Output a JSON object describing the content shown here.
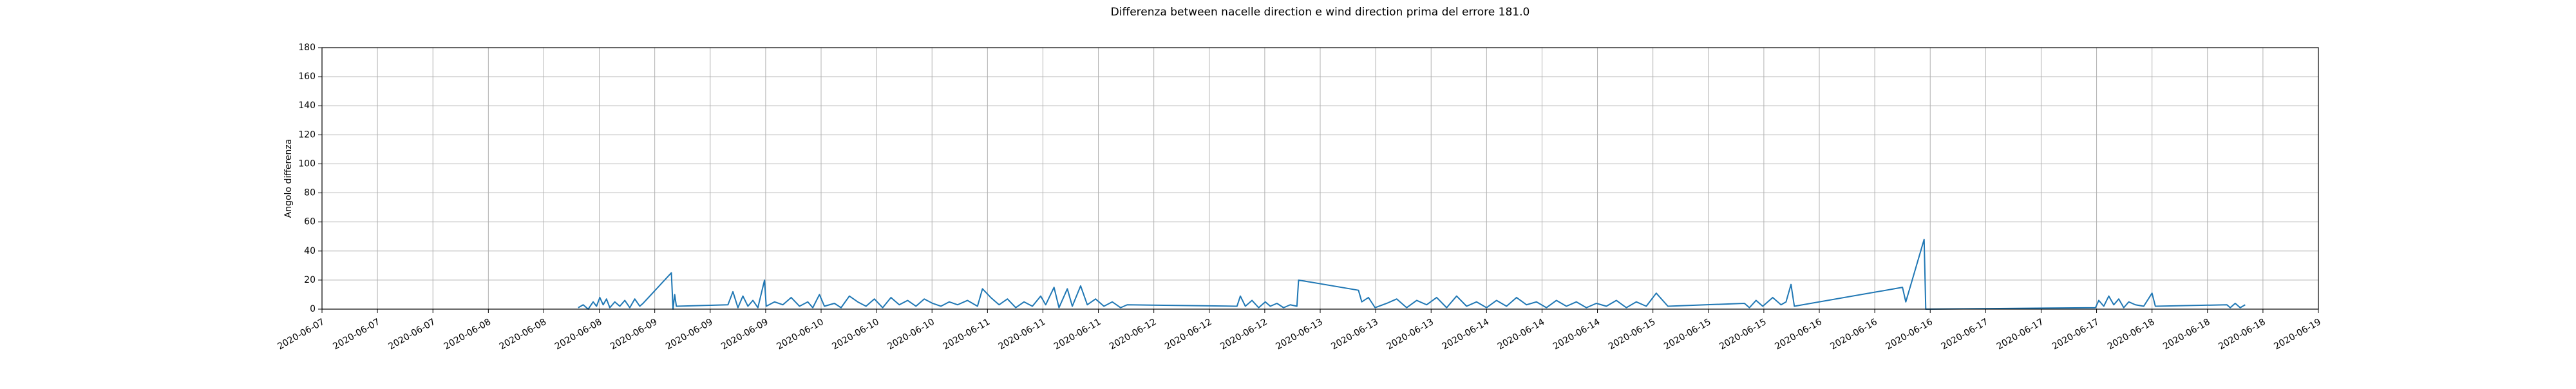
{
  "chart_data": {
    "type": "line",
    "title": "Differenza between nacelle direction e wind direction prima del errore 181.0",
    "ylabel": "Angolo differenza",
    "grid": true,
    "xlim": [
      18420,
      18432
    ],
    "xticks": [
      {
        "value": 18420,
        "label": "2020-06-07"
      },
      {
        "value": 18420.3333,
        "label": "2020-06-07"
      },
      {
        "value": 18420.6667,
        "label": "2020-06-07"
      },
      {
        "value": 18421,
        "label": "2020-06-08"
      },
      {
        "value": 18421.3333,
        "label": "2020-06-08"
      },
      {
        "value": 18421.6667,
        "label": "2020-06-08"
      },
      {
        "value": 18422,
        "label": "2020-06-09"
      },
      {
        "value": 18422.3333,
        "label": "2020-06-09"
      },
      {
        "value": 18422.6667,
        "label": "2020-06-09"
      },
      {
        "value": 18423,
        "label": "2020-06-10"
      },
      {
        "value": 18423.3333,
        "label": "2020-06-10"
      },
      {
        "value": 18423.6667,
        "label": "2020-06-10"
      },
      {
        "value": 18424,
        "label": "2020-06-11"
      },
      {
        "value": 18424.3333,
        "label": "2020-06-11"
      },
      {
        "value": 18424.6667,
        "label": "2020-06-11"
      },
      {
        "value": 18425,
        "label": "2020-06-12"
      },
      {
        "value": 18425.3333,
        "label": "2020-06-12"
      },
      {
        "value": 18425.6667,
        "label": "2020-06-12"
      },
      {
        "value": 18426,
        "label": "2020-06-13"
      },
      {
        "value": 18426.3333,
        "label": "2020-06-13"
      },
      {
        "value": 18426.6667,
        "label": "2020-06-13"
      },
      {
        "value": 18427,
        "label": "2020-06-14"
      },
      {
        "value": 18427.3333,
        "label": "2020-06-14"
      },
      {
        "value": 18427.6667,
        "label": "2020-06-14"
      },
      {
        "value": 18428,
        "label": "2020-06-15"
      },
      {
        "value": 18428.3333,
        "label": "2020-06-15"
      },
      {
        "value": 18428.6667,
        "label": "2020-06-15"
      },
      {
        "value": 18429,
        "label": "2020-06-16"
      },
      {
        "value": 18429.3333,
        "label": "2020-06-16"
      },
      {
        "value": 18429.6667,
        "label": "2020-06-16"
      },
      {
        "value": 18430,
        "label": "2020-06-17"
      },
      {
        "value": 18430.3333,
        "label": "2020-06-17"
      },
      {
        "value": 18430.6667,
        "label": "2020-06-17"
      },
      {
        "value": 18431,
        "label": "2020-06-18"
      },
      {
        "value": 18431.3333,
        "label": "2020-06-18"
      },
      {
        "value": 18431.6667,
        "label": "2020-06-18"
      },
      {
        "value": 18432,
        "label": "2020-06-19"
      }
    ],
    "ylim": [
      0,
      180
    ],
    "yticks": [
      0,
      20,
      40,
      60,
      80,
      100,
      120,
      140,
      160,
      180
    ],
    "x": [
      18421.54,
      18421.57,
      18421.6,
      18421.63,
      18421.65,
      18421.67,
      18421.69,
      18421.71,
      18421.73,
      18421.76,
      18421.79,
      18421.82,
      18421.85,
      18421.88,
      18421.91,
      18421.93,
      18422.1,
      18422.11,
      18422.12,
      18422.13,
      18422.44,
      18422.47,
      18422.5,
      18422.53,
      18422.56,
      18422.59,
      18422.62,
      18422.66,
      18422.67,
      18422.72,
      18422.77,
      18422.82,
      18422.87,
      18422.92,
      18422.95,
      18422.99,
      18423.02,
      18423.08,
      18423.12,
      18423.17,
      18423.22,
      18423.27,
      18423.32,
      18423.37,
      18423.42,
      18423.47,
      18423.52,
      18423.57,
      18423.62,
      18423.67,
      18423.72,
      18423.77,
      18423.82,
      18423.88,
      18423.94,
      18423.97,
      18424.02,
      18424.07,
      18424.12,
      18424.17,
      18424.22,
      18424.27,
      18424.32,
      18424.35,
      18424.4,
      18424.43,
      18424.48,
      18424.51,
      18424.56,
      18424.6,
      18424.65,
      18424.7,
      18424.75,
      18424.8,
      18424.84,
      18425.5,
      18425.52,
      18425.55,
      18425.59,
      18425.63,
      18425.67,
      18425.7,
      18425.74,
      18425.78,
      18425.82,
      18425.86,
      18425.87,
      18426.23,
      18426.25,
      18426.29,
      18426.33,
      18426.4,
      18426.46,
      18426.52,
      18426.58,
      18426.64,
      18426.7,
      18426.76,
      18426.82,
      18426.88,
      18426.94,
      18427.0,
      18427.06,
      18427.12,
      18427.18,
      18427.24,
      18427.3,
      18427.36,
      18427.42,
      18427.48,
      18427.54,
      18427.6,
      18427.66,
      18427.72,
      18427.78,
      18427.84,
      18427.9,
      18427.96,
      18428.02,
      18428.09,
      18428.55,
      18428.58,
      18428.62,
      18428.66,
      18428.72,
      18428.77,
      18428.8,
      18428.83,
      18428.85,
      18429.5,
      18429.52,
      18429.63,
      18429.64,
      18430.66,
      18430.68,
      18430.71,
      18430.74,
      18430.77,
      18430.8,
      18430.83,
      18430.86,
      18430.9,
      18430.95,
      18431.0,
      18431.02,
      18431.45,
      18431.47,
      18431.5,
      18431.53,
      18431.56
    ],
    "series": [
      {
        "color": "#1f77b4",
        "values": [
          1,
          3,
          0,
          5,
          2,
          8,
          3,
          7,
          1,
          5,
          2,
          6,
          1,
          7,
          2,
          4,
          25,
          0,
          10,
          2,
          3,
          12,
          1,
          9,
          2,
          6,
          1,
          20,
          2,
          5,
          3,
          8,
          2,
          5,
          1,
          10,
          2,
          4,
          1,
          9,
          5,
          2,
          7,
          1,
          8,
          3,
          6,
          2,
          7,
          4,
          2,
          5,
          3,
          6,
          2,
          14,
          8,
          3,
          7,
          1,
          5,
          2,
          9,
          3,
          15,
          1,
          14,
          2,
          16,
          3,
          7,
          2,
          5,
          1,
          3,
          2,
          9,
          2,
          6,
          1,
          5,
          2,
          4,
          1,
          3,
          2,
          20,
          13,
          5,
          8,
          1,
          4,
          7,
          1,
          6,
          3,
          8,
          1,
          9,
          2,
          5,
          1,
          6,
          2,
          8,
          3,
          5,
          1,
          6,
          2,
          5,
          1,
          4,
          2,
          6,
          1,
          5,
          2,
          11,
          2,
          4,
          1,
          6,
          2,
          8,
          3,
          5,
          17,
          2,
          15,
          5,
          48,
          0,
          1,
          6,
          2,
          9,
          3,
          7,
          1,
          5,
          3,
          2,
          11,
          2,
          3,
          1,
          4,
          1,
          3
        ]
      }
    ]
  }
}
